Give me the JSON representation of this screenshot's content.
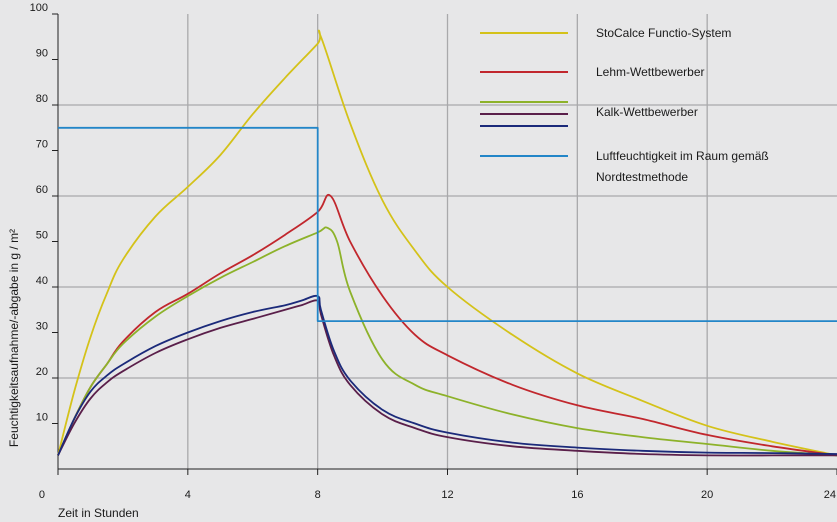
{
  "chart_data": {
    "type": "line",
    "title": "",
    "xlabel": "Zeit in Stunden",
    "ylabel": "Feuchtigkeitsaufnahme/-abgabe in g / m²",
    "xlim": [
      0,
      24
    ],
    "ylim": [
      0,
      100
    ],
    "x_ticks": [
      0,
      4,
      8,
      12,
      16,
      20,
      24
    ],
    "y_ticks": [
      10,
      20,
      30,
      40,
      50,
      60,
      70,
      80,
      90,
      100
    ],
    "grid": true,
    "legend_position": "top-right",
    "series": [
      {
        "name": "StoCalce Functio-System",
        "color": "#d4c219",
        "x": [
          0,
          0.5,
          1,
          1.5,
          2,
          3,
          4,
          5,
          6,
          7,
          8,
          8.1,
          9,
          10,
          11,
          12,
          14,
          16,
          18,
          20,
          22,
          24
        ],
        "y": [
          3,
          17,
          29,
          38.5,
          46,
          55.5,
          62,
          69,
          78,
          86,
          93.5,
          95,
          76,
          59,
          48,
          40,
          29.5,
          21,
          15,
          9.5,
          6,
          3
        ]
      },
      {
        "name": "Lehm-Wettbewerber",
        "color": "#c1272d",
        "x": [
          0,
          0.5,
          1,
          1.5,
          2,
          3,
          4,
          5,
          6,
          7,
          8,
          8.4,
          9,
          10,
          11,
          12,
          14,
          16,
          18,
          20,
          22,
          24
        ],
        "y": [
          3,
          11,
          18,
          23,
          28,
          34.5,
          38.5,
          43,
          47,
          51.5,
          56.5,
          60,
          50,
          38,
          29.5,
          25,
          18.5,
          14,
          11,
          7.5,
          5,
          3
        ]
      },
      {
        "name": "Kalk-Wettbewerber",
        "color": "#8db22a",
        "x": [
          0,
          0.5,
          1,
          1.5,
          2,
          3,
          4,
          5,
          6,
          7,
          8,
          8.3,
          8.6,
          9,
          10,
          11,
          12,
          14,
          16,
          18,
          20,
          22,
          24
        ],
        "y": [
          3,
          11,
          18,
          23,
          27.5,
          33.5,
          38,
          42,
          45.5,
          49,
          52,
          53,
          50,
          39,
          24,
          18.5,
          16,
          12,
          9,
          7,
          5.5,
          4,
          3
        ]
      },
      {
        "name": "Kalk-Wettbewerber",
        "color": "#5a1f4a",
        "x": [
          0,
          0.5,
          1,
          1.5,
          2,
          3,
          4,
          5,
          6,
          7,
          7.5,
          8,
          8.1,
          8.5,
          9,
          10,
          11,
          12,
          14,
          16,
          18,
          20,
          22,
          24
        ],
        "y": [
          3,
          10,
          15.5,
          19,
          21.5,
          25.5,
          28.5,
          31,
          33,
          35,
          36,
          37,
          34,
          25,
          18.5,
          12,
          9,
          7,
          5,
          4,
          3.3,
          3,
          3,
          3
        ]
      },
      {
        "name": "Kalk-Wettbewerber",
        "color": "#1b2a7a",
        "x": [
          0,
          0.5,
          1,
          1.5,
          2,
          3,
          4,
          5,
          6,
          7,
          7.5,
          8,
          8.1,
          8.5,
          9,
          10,
          11,
          12,
          14,
          16,
          18,
          20,
          22,
          24
        ],
        "y": [
          3,
          11,
          17,
          20.5,
          23,
          27,
          30,
          32.5,
          34.5,
          36,
          37,
          38,
          35,
          26,
          19.5,
          13,
          10,
          8,
          5.8,
          4.7,
          4,
          3.6,
          3.5,
          3.3
        ]
      },
      {
        "name": "Luftfeuchtigkeit im Raum gemäß Nordtestmethode",
        "color": "#2386c8",
        "step": true,
        "x": [
          0,
          8,
          8,
          24
        ],
        "y": [
          75,
          75,
          32.5,
          32.5
        ]
      }
    ],
    "legend": [
      {
        "label": "StoCalce Functio-System",
        "colors": [
          "#d4c219"
        ]
      },
      {
        "label": "Lehm-Wettbewerber",
        "colors": [
          "#c1272d"
        ]
      },
      {
        "label": "Kalk-Wettbewerber",
        "colors": [
          "#8db22a",
          "#5a1f4a",
          "#1b2a7a"
        ]
      },
      {
        "label_lines": [
          "Luftfeuchtigkeit im Raum gemäß",
          "Nordtestmethode"
        ],
        "colors": [
          "#2386c8"
        ]
      }
    ]
  }
}
